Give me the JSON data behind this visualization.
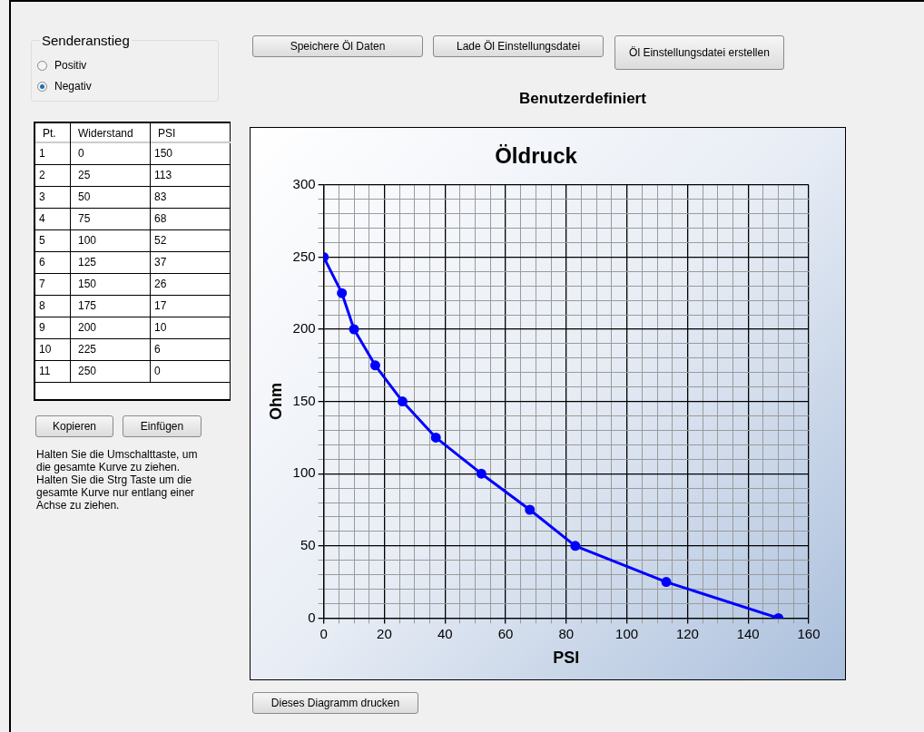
{
  "chart_data": {
    "type": "line",
    "title": "Öldruck",
    "xlabel": "PSI",
    "ylabel": "Ohm",
    "x": [
      150,
      113,
      83,
      68,
      52,
      37,
      26,
      17,
      10,
      6,
      0
    ],
    "series": [
      {
        "color": "#0000ff",
        "values": [
          0,
          25,
          50,
          75,
          100,
          125,
          150,
          175,
          200,
          225,
          250
        ]
      }
    ],
    "marker": "circle",
    "line_style": "solid",
    "grid": true,
    "legend": false,
    "xlim": [
      0,
      160
    ],
    "xticks": [
      0,
      {
        "value": 5,
        "label": null
      },
      {
        "value": 10,
        "label": null
      },
      {
        "value": 15,
        "label": null
      },
      20,
      {
        "value": 25,
        "label": null
      },
      {
        "value": 30,
        "label": null
      },
      {
        "value": 35,
        "label": null
      },
      40,
      {
        "value": 45,
        "label": null
      },
      {
        "value": 50,
        "label": null
      },
      {
        "value": 55,
        "label": null
      },
      60,
      {
        "value": 65,
        "label": null
      },
      {
        "value": 70,
        "label": null
      },
      {
        "value": 75,
        "label": null
      },
      80,
      {
        "value": 85,
        "label": null
      },
      {
        "value": 90,
        "label": null
      },
      {
        "value": 95,
        "label": null
      },
      100,
      {
        "value": 105,
        "label": null
      },
      {
        "value": 110,
        "label": null
      },
      {
        "value": 115,
        "label": null
      },
      120,
      {
        "value": 125,
        "label": null
      },
      {
        "value": 130,
        "label": null
      },
      {
        "value": 135,
        "label": null
      },
      140,
      {
        "value": 145,
        "label": null
      },
      {
        "value": 150,
        "label": null
      },
      {
        "value": 155,
        "label": null
      },
      160
    ],
    "ylim": [
      0,
      300
    ],
    "yticks": [
      0,
      {
        "value": 10,
        "label": null
      },
      {
        "value": 20,
        "label": null
      },
      {
        "value": 30,
        "label": null
      },
      {
        "value": 40,
        "label": null
      },
      50,
      {
        "value": 60,
        "label": null
      },
      {
        "value": 70,
        "label": null
      },
      {
        "value": 80,
        "label": null
      },
      {
        "value": 90,
        "label": null
      },
      100,
      {
        "value": 110,
        "label": null
      },
      {
        "value": 120,
        "label": null
      },
      {
        "value": 130,
        "label": null
      },
      {
        "value": 140,
        "label": null
      },
      150,
      {
        "value": 160,
        "label": null
      },
      {
        "value": 170,
        "label": null
      },
      {
        "value": 180,
        "label": null
      },
      {
        "value": 190,
        "label": null
      },
      200,
      {
        "value": 210,
        "label": null
      },
      {
        "value": 220,
        "label": null
      },
      {
        "value": 230,
        "label": null
      },
      {
        "value": 240,
        "label": null
      },
      250,
      {
        "value": 260,
        "label": null
      },
      {
        "value": 270,
        "label": null
      },
      {
        "value": 280,
        "label": null
      },
      {
        "value": 290,
        "label": null
      },
      300
    ],
    "annotations": [
      "Senderanstieg",
      "Positiv",
      "Negativ",
      "Pt.",
      "Widerstand",
      "PSI",
      "Kopieren",
      "Einfügen",
      "Halten Sie die Umschalttaste, um die gesamte Kurve zu ziehen.  Halten Sie die Strg Taste um die gesamte Kurve nur entlang einer Achse zu ziehen.",
      "Speichere Öl Daten",
      "Lade Öl Einstellungsdatei",
      "Öl Einstellungsdatei erstellen",
      "Benutzerdefiniert",
      "Dieses Diagramm drucken",
      "1",
      "2",
      "3",
      "4",
      "5",
      "6",
      "7",
      "8",
      "9",
      "10",
      "11",
      "0",
      "25",
      "50",
      "75",
      "100",
      "125",
      "150",
      "175",
      "200",
      "225",
      "250",
      "150",
      "113",
      "83",
      "68",
      "52",
      "37",
      "26",
      "17",
      "10",
      "6",
      "0"
    ]
  }
}
